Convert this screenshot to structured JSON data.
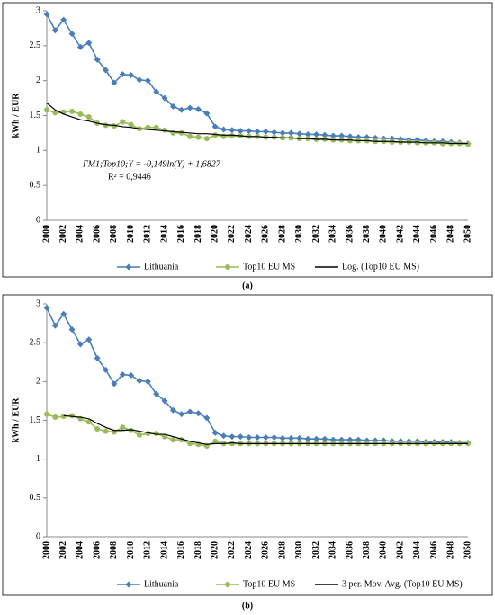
{
  "chart_data": [
    {
      "type": "line",
      "caption": "(a)",
      "ylabel": "kWh / EUR",
      "annotations": [
        "ΓM1;Top10;Y = -0,149ln(Y) + 1,6827",
        "R² = 0,9446"
      ],
      "categories": [
        "2000",
        null,
        "2002",
        null,
        "2004",
        null,
        "2006",
        null,
        "2008",
        null,
        "2010",
        null,
        "2012",
        null,
        "2014",
        null,
        "2016",
        null,
        "2018",
        null,
        "2020",
        null,
        "2022",
        null,
        "2024",
        null,
        "2026",
        null,
        "2028",
        null,
        "2030",
        null,
        "2032",
        null,
        "2034",
        null,
        "2036",
        null,
        "2038",
        null,
        "2040",
        null,
        "2042",
        null,
        "2044",
        null,
        "2046",
        null,
        "2048",
        null,
        "2050"
      ],
      "ylim": [
        0,
        3
      ],
      "yticks": [
        0,
        0.5,
        1,
        1.5,
        2,
        2.5,
        3
      ],
      "series": [
        {
          "name": "Lithuania",
          "color": "#4a7ebb",
          "marker": "diamond",
          "values": [
            2.95,
            2.72,
            2.87,
            2.67,
            2.48,
            2.54,
            2.3,
            2.15,
            1.97,
            2.09,
            2.08,
            2.01,
            2.0,
            1.84,
            1.75,
            1.63,
            1.58,
            1.61,
            1.59,
            1.53,
            1.34,
            1.3,
            1.29,
            1.28,
            1.28,
            1.27,
            1.27,
            1.26,
            1.25,
            1.25,
            1.24,
            1.23,
            1.23,
            1.22,
            1.21,
            1.21,
            1.2,
            1.19,
            1.19,
            1.18,
            1.17,
            1.17,
            1.16,
            1.15,
            1.15,
            1.14,
            1.13,
            1.13,
            1.12,
            1.11,
            1.1
          ]
        },
        {
          "name": "Top10 EU MS",
          "color": "#9bbb59",
          "marker": "circle",
          "values": [
            1.58,
            1.54,
            1.55,
            1.56,
            1.52,
            1.48,
            1.39,
            1.36,
            1.35,
            1.41,
            1.37,
            1.31,
            1.33,
            1.33,
            1.29,
            1.25,
            1.25,
            1.2,
            1.19,
            1.17,
            1.22,
            1.2,
            1.21,
            1.21,
            1.2,
            1.2,
            1.19,
            1.19,
            1.18,
            1.18,
            1.17,
            1.17,
            1.16,
            1.16,
            1.15,
            1.15,
            1.14,
            1.14,
            1.14,
            1.13,
            1.13,
            1.12,
            1.12,
            1.12,
            1.11,
            1.11,
            1.11,
            1.1,
            1.1,
            1.1,
            1.09
          ]
        },
        {
          "name": "Log. (Top10 EU MS)",
          "color": "#000000",
          "marker": "none",
          "values": [
            1.68,
            1.58,
            1.52,
            1.48,
            1.44,
            1.42,
            1.39,
            1.37,
            1.36,
            1.34,
            1.33,
            1.31,
            1.3,
            1.29,
            1.28,
            1.27,
            1.26,
            1.25,
            1.24,
            1.24,
            1.23,
            1.22,
            1.22,
            1.21,
            1.2,
            1.2,
            1.19,
            1.19,
            1.18,
            1.18,
            1.17,
            1.17,
            1.16,
            1.16,
            1.15,
            1.15,
            1.15,
            1.14,
            1.14,
            1.13,
            1.13,
            1.13,
            1.12,
            1.12,
            1.12,
            1.11,
            1.11,
            1.11,
            1.1,
            1.1,
            1.1
          ]
        }
      ]
    },
    {
      "type": "line",
      "caption": "(b)",
      "ylabel": "kWh / EUR",
      "categories": [
        "2000",
        null,
        "2002",
        null,
        "2004",
        null,
        "2006",
        null,
        "2008",
        null,
        "2010",
        null,
        "2012",
        null,
        "2014",
        null,
        "2016",
        null,
        "2018",
        null,
        "2020",
        null,
        "2022",
        null,
        "2024",
        null,
        "2026",
        null,
        "2028",
        null,
        "2030",
        null,
        "2032",
        null,
        "2034",
        null,
        "2036",
        null,
        "2038",
        null,
        "2040",
        null,
        "2042",
        null,
        "2044",
        null,
        "2046",
        null,
        "2048",
        null,
        "2050"
      ],
      "ylim": [
        0,
        3
      ],
      "yticks": [
        0,
        0.5,
        1,
        1.5,
        2,
        2.5,
        3
      ],
      "series": [
        {
          "name": "Lithuania",
          "color": "#4a7ebb",
          "marker": "diamond",
          "values": [
            2.95,
            2.72,
            2.87,
            2.67,
            2.48,
            2.54,
            2.3,
            2.15,
            1.97,
            2.09,
            2.08,
            2.01,
            2.0,
            1.84,
            1.75,
            1.63,
            1.58,
            1.61,
            1.59,
            1.53,
            1.34,
            1.3,
            1.29,
            1.29,
            1.28,
            1.28,
            1.28,
            1.28,
            1.27,
            1.27,
            1.27,
            1.26,
            1.26,
            1.26,
            1.25,
            1.25,
            1.25,
            1.25,
            1.24,
            1.24,
            1.24,
            1.23,
            1.23,
            1.23,
            1.23,
            1.22,
            1.22,
            1.22,
            1.22,
            1.21,
            1.21
          ]
        },
        {
          "name": "Top10 EU MS",
          "color": "#9bbb59",
          "marker": "circle",
          "values": [
            1.58,
            1.54,
            1.55,
            1.56,
            1.52,
            1.48,
            1.39,
            1.36,
            1.35,
            1.41,
            1.37,
            1.31,
            1.33,
            1.33,
            1.29,
            1.25,
            1.25,
            1.2,
            1.19,
            1.17,
            1.23,
            1.2,
            1.2,
            1.2,
            1.2,
            1.2,
            1.2,
            1.2,
            1.2,
            1.2,
            1.2,
            1.2,
            1.2,
            1.2,
            1.2,
            1.2,
            1.2,
            1.2,
            1.2,
            1.2,
            1.2,
            1.2,
            1.2,
            1.2,
            1.2,
            1.2,
            1.2,
            1.2,
            1.2,
            1.2,
            1.2
          ]
        },
        {
          "name": "3 per. Mov. Avg. (Top10 EU MS)",
          "color": "#000000",
          "marker": "none",
          "values": [
            null,
            null,
            1.56,
            1.55,
            1.54,
            1.52,
            1.46,
            1.41,
            1.37,
            1.37,
            1.38,
            1.36,
            1.34,
            1.32,
            1.32,
            1.29,
            1.26,
            1.23,
            1.21,
            1.19,
            1.2,
            1.2,
            1.21,
            1.2,
            1.2,
            1.2,
            1.2,
            1.2,
            1.2,
            1.2,
            1.2,
            1.2,
            1.2,
            1.2,
            1.2,
            1.2,
            1.2,
            1.2,
            1.2,
            1.2,
            1.2,
            1.2,
            1.2,
            1.2,
            1.2,
            1.2,
            1.2,
            1.2,
            1.2,
            1.2,
            1.2
          ]
        }
      ]
    }
  ]
}
